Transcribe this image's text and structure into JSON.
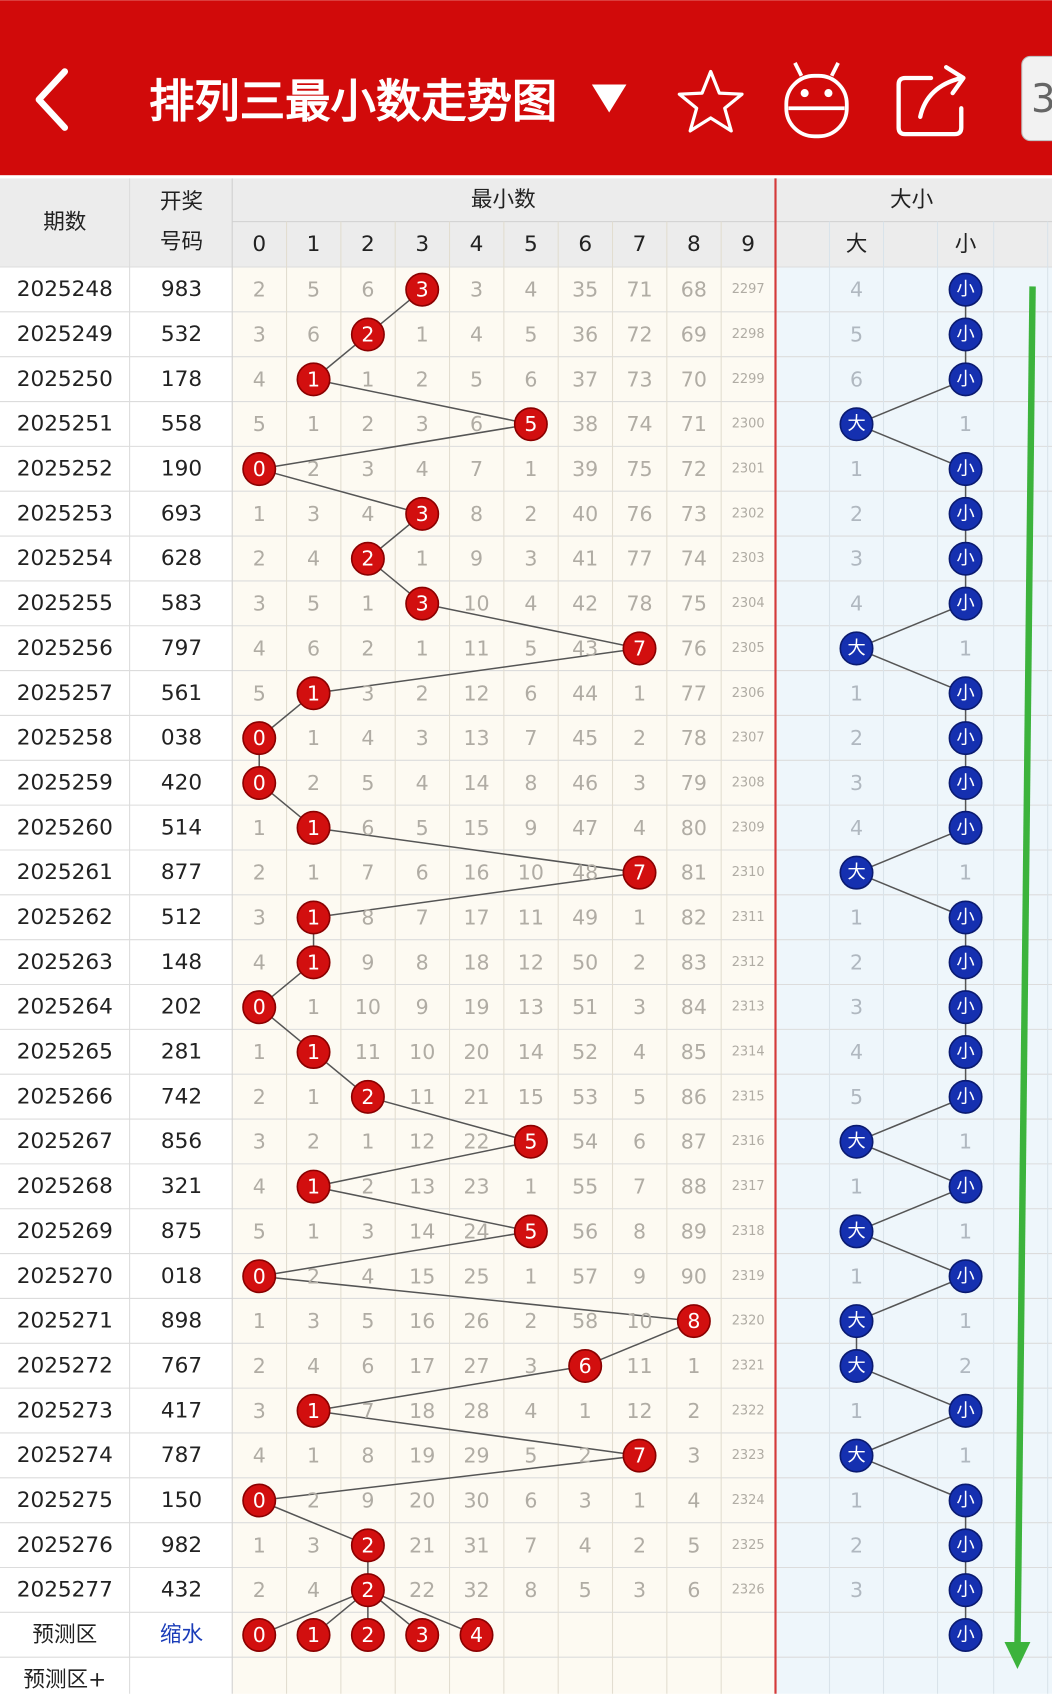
{
  "header": {
    "title": "排列三最小数走势图",
    "badge": "3"
  },
  "table": {
    "columns": {
      "period": "期数",
      "number": [
        "开奖",
        "号码"
      ],
      "min_group": "最小数",
      "digits": [
        0,
        1,
        2,
        3,
        4,
        5,
        6,
        7,
        8,
        9
      ],
      "size_group": "大小",
      "size": [
        "大",
        "小"
      ]
    },
    "rows": [
      {
        "period": "2025248",
        "number": "983",
        "cells": [
          2,
          5,
          6,
          {
            "ball": 3
          },
          3,
          4,
          35,
          71,
          68,
          2297
        ],
        "size": [
          4,
          {
            "ball": "小"
          }
        ]
      },
      {
        "period": "2025249",
        "number": "532",
        "cells": [
          3,
          6,
          {
            "ball": 2
          },
          1,
          4,
          5,
          36,
          72,
          69,
          2298
        ],
        "size": [
          5,
          {
            "ball": "小"
          }
        ]
      },
      {
        "period": "2025250",
        "number": "178",
        "cells": [
          4,
          {
            "ball": 1
          },
          1,
          2,
          5,
          6,
          37,
          73,
          70,
          2299
        ],
        "size": [
          6,
          {
            "ball": "小"
          }
        ]
      },
      {
        "period": "2025251",
        "number": "558",
        "cells": [
          5,
          1,
          2,
          3,
          6,
          {
            "ball": 5
          },
          38,
          74,
          71,
          2300
        ],
        "size": [
          {
            "ball": "大"
          },
          1
        ]
      },
      {
        "period": "2025252",
        "number": "190",
        "cells": [
          {
            "ball": 0
          },
          2,
          3,
          4,
          7,
          1,
          39,
          75,
          72,
          2301
        ],
        "size": [
          1,
          {
            "ball": "小"
          }
        ]
      },
      {
        "period": "2025253",
        "number": "693",
        "cells": [
          1,
          3,
          4,
          {
            "ball": 3
          },
          8,
          2,
          40,
          76,
          73,
          2302
        ],
        "size": [
          2,
          {
            "ball": "小"
          }
        ]
      },
      {
        "period": "2025254",
        "number": "628",
        "cells": [
          2,
          4,
          {
            "ball": 2
          },
          1,
          9,
          3,
          41,
          77,
          74,
          2303
        ],
        "size": [
          3,
          {
            "ball": "小"
          }
        ]
      },
      {
        "period": "2025255",
        "number": "583",
        "cells": [
          3,
          5,
          1,
          {
            "ball": 3
          },
          10,
          4,
          42,
          78,
          75,
          2304
        ],
        "size": [
          4,
          {
            "ball": "小"
          }
        ]
      },
      {
        "period": "2025256",
        "number": "797",
        "cells": [
          4,
          6,
          2,
          1,
          11,
          5,
          43,
          {
            "ball": 7
          },
          76,
          2305
        ],
        "size": [
          {
            "ball": "大"
          },
          1
        ]
      },
      {
        "period": "2025257",
        "number": "561",
        "cells": [
          5,
          {
            "ball": 1
          },
          3,
          2,
          12,
          6,
          44,
          1,
          77,
          2306
        ],
        "size": [
          1,
          {
            "ball": "小"
          }
        ]
      },
      {
        "period": "2025258",
        "number": "038",
        "cells": [
          {
            "ball": 0
          },
          1,
          4,
          3,
          13,
          7,
          45,
          2,
          78,
          2307
        ],
        "size": [
          2,
          {
            "ball": "小"
          }
        ]
      },
      {
        "period": "2025259",
        "number": "420",
        "cells": [
          {
            "ball": 0
          },
          2,
          5,
          4,
          14,
          8,
          46,
          3,
          79,
          2308
        ],
        "size": [
          3,
          {
            "ball": "小"
          }
        ]
      },
      {
        "period": "2025260",
        "number": "514",
        "cells": [
          1,
          {
            "ball": 1
          },
          6,
          5,
          15,
          9,
          47,
          4,
          80,
          2309
        ],
        "size": [
          4,
          {
            "ball": "小"
          }
        ]
      },
      {
        "period": "2025261",
        "number": "877",
        "cells": [
          2,
          1,
          7,
          6,
          16,
          10,
          48,
          {
            "ball": 7
          },
          81,
          2310
        ],
        "size": [
          {
            "ball": "大"
          },
          1
        ]
      },
      {
        "period": "2025262",
        "number": "512",
        "cells": [
          3,
          {
            "ball": 1
          },
          8,
          7,
          17,
          11,
          49,
          1,
          82,
          2311
        ],
        "size": [
          1,
          {
            "ball": "小"
          }
        ]
      },
      {
        "period": "2025263",
        "number": "148",
        "cells": [
          4,
          {
            "ball": 1
          },
          9,
          8,
          18,
          12,
          50,
          2,
          83,
          2312
        ],
        "size": [
          2,
          {
            "ball": "小"
          }
        ]
      },
      {
        "period": "2025264",
        "number": "202",
        "cells": [
          {
            "ball": 0
          },
          1,
          10,
          9,
          19,
          13,
          51,
          3,
          84,
          2313
        ],
        "size": [
          3,
          {
            "ball": "小"
          }
        ]
      },
      {
        "period": "2025265",
        "number": "281",
        "cells": [
          1,
          {
            "ball": 1
          },
          11,
          10,
          20,
          14,
          52,
          4,
          85,
          2314
        ],
        "size": [
          4,
          {
            "ball": "小"
          }
        ]
      },
      {
        "period": "2025266",
        "number": "742",
        "cells": [
          2,
          1,
          {
            "ball": 2
          },
          11,
          21,
          15,
          53,
          5,
          86,
          2315
        ],
        "size": [
          5,
          {
            "ball": "小"
          }
        ]
      },
      {
        "period": "2025267",
        "number": "856",
        "cells": [
          3,
          2,
          1,
          12,
          22,
          {
            "ball": 5
          },
          54,
          6,
          87,
          2316
        ],
        "size": [
          {
            "ball": "大"
          },
          1
        ]
      },
      {
        "period": "2025268",
        "number": "321",
        "cells": [
          4,
          {
            "ball": 1
          },
          2,
          13,
          23,
          1,
          55,
          7,
          88,
          2317
        ],
        "size": [
          1,
          {
            "ball": "小"
          }
        ]
      },
      {
        "period": "2025269",
        "number": "875",
        "cells": [
          5,
          1,
          3,
          14,
          24,
          {
            "ball": 5
          },
          56,
          8,
          89,
          2318
        ],
        "size": [
          {
            "ball": "大"
          },
          1
        ]
      },
      {
        "period": "2025270",
        "number": "018",
        "cells": [
          {
            "ball": 0
          },
          2,
          4,
          15,
          25,
          1,
          57,
          9,
          90,
          2319
        ],
        "size": [
          1,
          {
            "ball": "小"
          }
        ]
      },
      {
        "period": "2025271",
        "number": "898",
        "cells": [
          1,
          3,
          5,
          16,
          26,
          2,
          58,
          10,
          {
            "ball": 8
          },
          2320
        ],
        "size": [
          {
            "ball": "大"
          },
          1
        ]
      },
      {
        "period": "2025272",
        "number": "767",
        "cells": [
          2,
          4,
          6,
          17,
          27,
          3,
          {
            "ball": 6
          },
          11,
          1,
          2321
        ],
        "size": [
          {
            "ball": "大"
          },
          2
        ]
      },
      {
        "period": "2025273",
        "number": "417",
        "cells": [
          3,
          {
            "ball": 1
          },
          7,
          18,
          28,
          4,
          1,
          12,
          2,
          2322
        ],
        "size": [
          1,
          {
            "ball": "小"
          }
        ]
      },
      {
        "period": "2025274",
        "number": "787",
        "cells": [
          4,
          1,
          8,
          19,
          29,
          5,
          2,
          {
            "ball": 7
          },
          3,
          2323
        ],
        "size": [
          {
            "ball": "大"
          },
          1
        ]
      },
      {
        "period": "2025275",
        "number": "150",
        "cells": [
          {
            "ball": 0
          },
          2,
          9,
          20,
          30,
          6,
          3,
          1,
          4,
          2324
        ],
        "size": [
          1,
          {
            "ball": "小"
          }
        ]
      },
      {
        "period": "2025276",
        "number": "982",
        "cells": [
          1,
          3,
          {
            "ball": 2
          },
          21,
          31,
          7,
          4,
          2,
          5,
          2325
        ],
        "size": [
          2,
          {
            "ball": "小"
          }
        ]
      },
      {
        "period": "2025277",
        "number": "432",
        "cells": [
          2,
          4,
          {
            "ball": 2
          },
          22,
          32,
          8,
          5,
          3,
          6,
          2326
        ],
        "size": [
          3,
          {
            "ball": "小"
          }
        ]
      }
    ],
    "prediction": {
      "label": "预测区",
      "note": "缩水",
      "digits": [
        0,
        1,
        2,
        3,
        4
      ],
      "small": "小"
    },
    "extra_label": "预测区+"
  }
}
